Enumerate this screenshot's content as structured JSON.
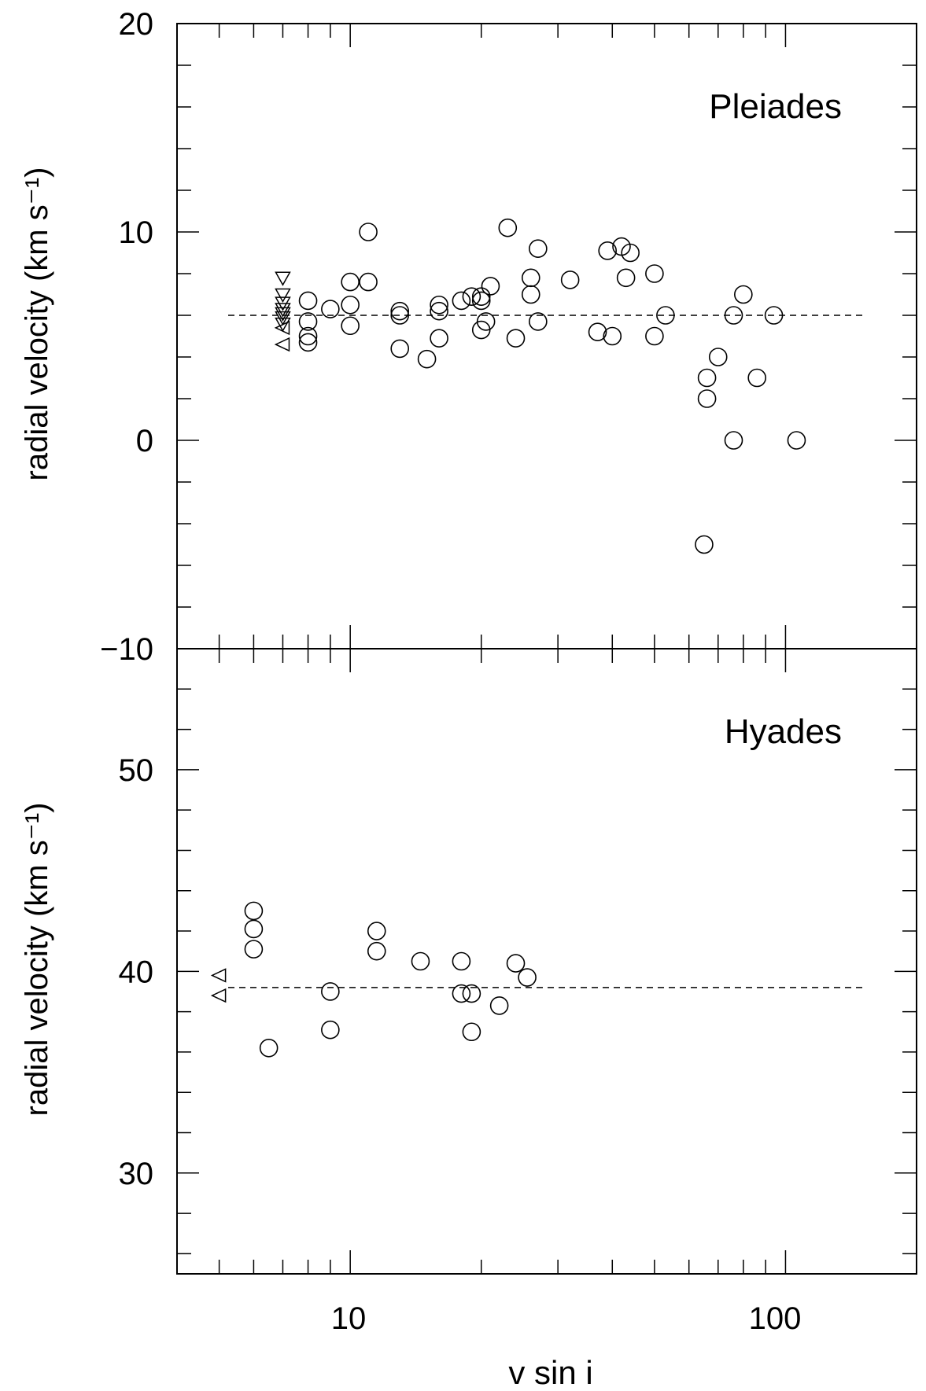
{
  "figure": {
    "shared_xlabel": "v sin i",
    "x_tick_labels": [
      "10",
      "100"
    ]
  },
  "chart_data": [
    {
      "type": "scatter",
      "panel_label": "Pleiades",
      "ylabel": "radial velocity (km s⁻¹)",
      "xlabel": "v sin i",
      "xscale": "log",
      "xlim": [
        4,
        200
      ],
      "ylim": [
        -10,
        20
      ],
      "y_ticks": [
        -10,
        0,
        10,
        20
      ],
      "y_tick_labels": [
        "−10",
        "0",
        "10",
        "20"
      ],
      "reference_line": {
        "y": 6,
        "style": "dashed"
      },
      "series": [
        {
          "marker": "circle",
          "points": [
            {
              "x": 8,
              "y": 6.7
            },
            {
              "x": 8,
              "y": 5.7
            },
            {
              "x": 8,
              "y": 5.0
            },
            {
              "x": 8,
              "y": 4.7
            },
            {
              "x": 9,
              "y": 6.3
            },
            {
              "x": 10,
              "y": 7.6
            },
            {
              "x": 10,
              "y": 6.5
            },
            {
              "x": 10,
              "y": 5.5
            },
            {
              "x": 11,
              "y": 10.0
            },
            {
              "x": 11,
              "y": 7.6
            },
            {
              "x": 13,
              "y": 6.2
            },
            {
              "x": 13,
              "y": 6.0
            },
            {
              "x": 13,
              "y": 4.4
            },
            {
              "x": 15,
              "y": 3.9
            },
            {
              "x": 16,
              "y": 6.5
            },
            {
              "x": 16,
              "y": 6.2
            },
            {
              "x": 16,
              "y": 4.9
            },
            {
              "x": 18,
              "y": 6.7
            },
            {
              "x": 19,
              "y": 6.9
            },
            {
              "x": 20,
              "y": 6.9
            },
            {
              "x": 20,
              "y": 6.7
            },
            {
              "x": 20,
              "y": 5.3
            },
            {
              "x": 20.5,
              "y": 5.7
            },
            {
              "x": 21,
              "y": 7.4
            },
            {
              "x": 23,
              "y": 10.2
            },
            {
              "x": 24,
              "y": 4.9
            },
            {
              "x": 26,
              "y": 7.8
            },
            {
              "x": 26,
              "y": 7.0
            },
            {
              "x": 27,
              "y": 9.2
            },
            {
              "x": 27,
              "y": 5.7
            },
            {
              "x": 32,
              "y": 7.7
            },
            {
              "x": 37,
              "y": 5.2
            },
            {
              "x": 39,
              "y": 9.1
            },
            {
              "x": 40,
              "y": 5.0
            },
            {
              "x": 42,
              "y": 9.3
            },
            {
              "x": 43,
              "y": 7.8
            },
            {
              "x": 44,
              "y": 9.0
            },
            {
              "x": 50,
              "y": 8.0
            },
            {
              "x": 50,
              "y": 5.0
            },
            {
              "x": 53,
              "y": 6.0
            },
            {
              "x": 65,
              "y": -5.0
            },
            {
              "x": 66,
              "y": 3.0
            },
            {
              "x": 66,
              "y": 2.0
            },
            {
              "x": 70,
              "y": 4.0
            },
            {
              "x": 76,
              "y": 6.0
            },
            {
              "x": 76,
              "y": 0.0
            },
            {
              "x": 80,
              "y": 7.0
            },
            {
              "x": 86,
              "y": 3.0
            },
            {
              "x": 94,
              "y": 6.0
            },
            {
              "x": 106,
              "y": 0.0
            }
          ]
        },
        {
          "marker": "triangle-down",
          "note": "upper limits",
          "points": [
            {
              "x": 7,
              "y": 7.8
            },
            {
              "x": 7,
              "y": 7.0
            },
            {
              "x": 7,
              "y": 6.6
            },
            {
              "x": 7,
              "y": 6.3
            },
            {
              "x": 7,
              "y": 6.1
            },
            {
              "x": 7,
              "y": 5.9
            },
            {
              "x": 7,
              "y": 5.6
            }
          ]
        },
        {
          "marker": "triangle-left",
          "points": [
            {
              "x": 7,
              "y": 5.4
            },
            {
              "x": 7,
              "y": 4.6
            }
          ]
        }
      ]
    },
    {
      "type": "scatter",
      "panel_label": "Hyades",
      "ylabel": "radial velocity (km s⁻¹)",
      "xlabel": "v sin i",
      "xscale": "log",
      "xlim": [
        4,
        200
      ],
      "ylim": [
        25,
        56
      ],
      "y_ticks": [
        30,
        40,
        50
      ],
      "y_tick_labels": [
        "30",
        "40",
        "50"
      ],
      "reference_line": {
        "y": 39.2,
        "style": "dashed"
      },
      "series": [
        {
          "marker": "circle",
          "points": [
            {
              "x": 6,
              "y": 43.0
            },
            {
              "x": 6,
              "y": 42.1
            },
            {
              "x": 6,
              "y": 41.1
            },
            {
              "x": 6.5,
              "y": 36.2
            },
            {
              "x": 9,
              "y": 39.0
            },
            {
              "x": 9,
              "y": 37.1
            },
            {
              "x": 11.5,
              "y": 42.0
            },
            {
              "x": 11.5,
              "y": 41.0
            },
            {
              "x": 14.5,
              "y": 40.5
            },
            {
              "x": 18,
              "y": 40.5
            },
            {
              "x": 18,
              "y": 38.9
            },
            {
              "x": 19,
              "y": 38.9
            },
            {
              "x": 19,
              "y": 37.0
            },
            {
              "x": 22,
              "y": 38.3
            },
            {
              "x": 24,
              "y": 40.4
            },
            {
              "x": 25.5,
              "y": 39.7
            }
          ]
        },
        {
          "marker": "triangle-left",
          "points": [
            {
              "x": 5,
              "y": 39.8
            },
            {
              "x": 5,
              "y": 38.8
            }
          ]
        }
      ]
    }
  ]
}
